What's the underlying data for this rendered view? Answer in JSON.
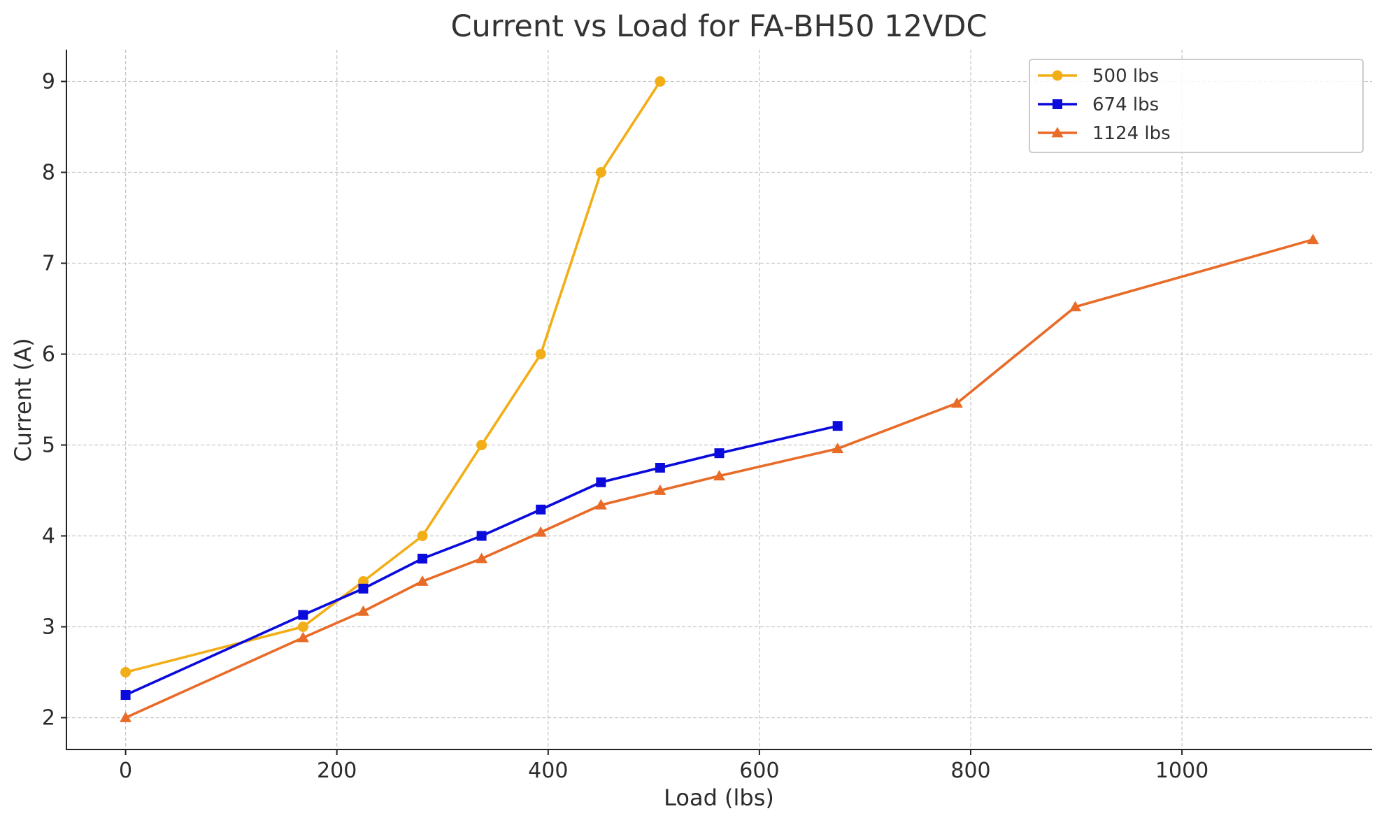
{
  "chart_data": {
    "type": "line",
    "title": "Current vs Load for FA-BH50 12VDC",
    "xlabel": "Load (lbs)",
    "ylabel": "Current (A)",
    "xlim": [
      -56,
      1180
    ],
    "ylim": [
      1.65,
      9.35
    ],
    "xticks": [
      0,
      200,
      400,
      600,
      800,
      1000
    ],
    "yticks": [
      2,
      3,
      4,
      5,
      6,
      7,
      8,
      9
    ],
    "grid": true,
    "legend_position": "top-right",
    "series": [
      {
        "name": "500 lbs",
        "color": "#F2AE17",
        "marker": "circle",
        "points": [
          [
            0,
            2.5
          ],
          [
            168,
            3.0
          ],
          [
            225,
            3.5
          ],
          [
            281,
            4.0
          ],
          [
            337,
            5.0
          ],
          [
            393,
            6.0
          ],
          [
            450,
            8.0
          ],
          [
            506,
            9.0
          ]
        ]
      },
      {
        "name": "674 lbs",
        "color": "#0A0ADC",
        "marker": "square",
        "points": [
          [
            0,
            2.25
          ],
          [
            168,
            3.13
          ],
          [
            225,
            3.42
          ],
          [
            281,
            3.75
          ],
          [
            337,
            4.0
          ],
          [
            393,
            4.29
          ],
          [
            450,
            4.59
          ],
          [
            506,
            4.75
          ],
          [
            562,
            4.91
          ],
          [
            674,
            5.21
          ]
        ]
      },
      {
        "name": "1124 lbs",
        "color": "#E86B28",
        "marker": "triangle",
        "points": [
          [
            0,
            2.0
          ],
          [
            168,
            2.88
          ],
          [
            225,
            3.17
          ],
          [
            281,
            3.5
          ],
          [
            337,
            3.75
          ],
          [
            393,
            4.04
          ],
          [
            450,
            4.34
          ],
          [
            506,
            4.5
          ],
          [
            562,
            4.66
          ],
          [
            674,
            4.96
          ],
          [
            787,
            5.46
          ],
          [
            899,
            6.52
          ],
          [
            1124,
            7.26
          ]
        ]
      }
    ]
  }
}
